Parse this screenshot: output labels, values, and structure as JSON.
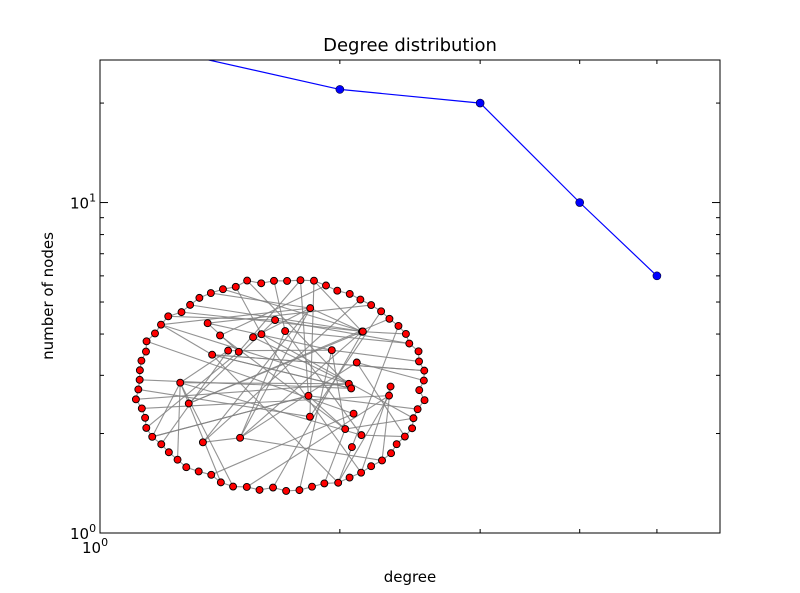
{
  "chart_data": {
    "type": "line",
    "title": "Degree distribution",
    "xlabel": "degree",
    "ylabel": "number of nodes",
    "xscale": "log",
    "yscale": "log",
    "xlim": [
      1,
      6
    ],
    "ylim": [
      1,
      27
    ],
    "yticks": [
      {
        "value": 1,
        "base": "10",
        "exp": "0"
      },
      {
        "value": 10,
        "base": "10",
        "exp": "1"
      }
    ],
    "xticks": [
      {
        "value": 1,
        "base": "10",
        "exp": "0"
      }
    ],
    "series": [
      {
        "x": [
          1,
          2,
          3,
          4,
          5
        ],
        "y": [
          32,
          22,
          20,
          10,
          6
        ],
        "color": "#0000ff",
        "marker": "circle"
      }
    ],
    "grid": false,
    "inset": {
      "type": "network-graph",
      "node_count": 96,
      "node_color": "#ff0000",
      "node_edge_color": "#000000",
      "edge_color": "#808080"
    }
  }
}
